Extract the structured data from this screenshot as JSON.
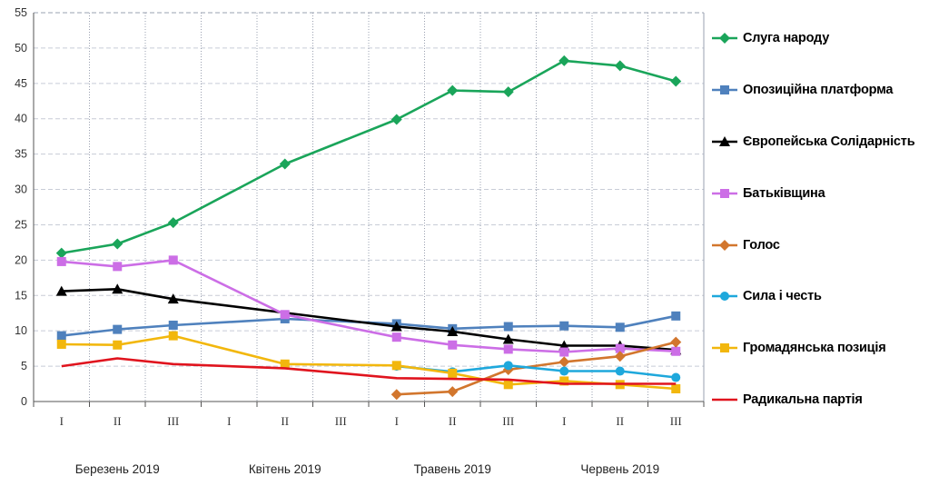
{
  "chart_data": {
    "type": "line",
    "x": [
      "I",
      "II",
      "III",
      "I",
      "II",
      "III",
      "I",
      "II",
      "III",
      "I",
      "II",
      "III"
    ],
    "months": [
      "Березень 2019",
      "Квітень 2019",
      "Травень 2019",
      "Червень 2019"
    ],
    "yticks": [
      "0",
      "5",
      "10",
      "15",
      "20",
      "25",
      "30",
      "35",
      "40",
      "45",
      "50",
      "55"
    ],
    "ylim": [
      0,
      55
    ],
    "grid": true,
    "legend_position": "right",
    "series": [
      {
        "name": "Слуга народу",
        "color": "#1aa55a",
        "marker": "diamond",
        "values": [
          21.0,
          22.3,
          25.3,
          null,
          33.6,
          null,
          39.9,
          44.0,
          43.8,
          48.2,
          47.5,
          45.3
        ]
      },
      {
        "name": "Опозиційна платформа",
        "color": "#4f81bd",
        "marker": "square",
        "values": [
          9.3,
          10.2,
          10.8,
          null,
          11.7,
          null,
          11.0,
          10.3,
          10.6,
          10.7,
          10.5,
          12.1
        ]
      },
      {
        "name": "Європейська Солідарність",
        "color": "#000000",
        "marker": "triangle",
        "values": [
          15.6,
          15.9,
          14.5,
          null,
          null,
          null,
          10.6,
          9.9,
          8.8,
          7.9,
          7.9,
          7.3
        ]
      },
      {
        "name": "Батьківщина",
        "color": "#cc6ee6",
        "marker": "square",
        "values": [
          19.8,
          19.1,
          20.0,
          null,
          12.3,
          null,
          9.1,
          8.0,
          7.4,
          7.0,
          7.5,
          7.1
        ]
      },
      {
        "name": "Голос",
        "color": "#d2762d",
        "marker": "diamond",
        "values": [
          null,
          null,
          null,
          null,
          null,
          null,
          1.0,
          1.4,
          4.5,
          5.6,
          6.4,
          8.4
        ]
      },
      {
        "name": "Сила і честь",
        "color": "#1ea8dc",
        "marker": "circle",
        "values": [
          null,
          null,
          null,
          null,
          null,
          null,
          5.0,
          4.2,
          5.1,
          4.3,
          4.3,
          3.4
        ]
      },
      {
        "name": "Громадянська позиція",
        "color": "#f2b70d",
        "marker": "square",
        "values": [
          8.1,
          8.0,
          9.3,
          null,
          5.3,
          null,
          5.1,
          4.0,
          2.4,
          2.9,
          2.4,
          1.8
        ]
      },
      {
        "name": "Радикальна партія",
        "color": "#e0141e",
        "marker": "none",
        "values": [
          5.0,
          6.1,
          5.3,
          null,
          4.7,
          null,
          3.3,
          3.2,
          3.1,
          2.5,
          2.5,
          2.5
        ]
      }
    ]
  }
}
